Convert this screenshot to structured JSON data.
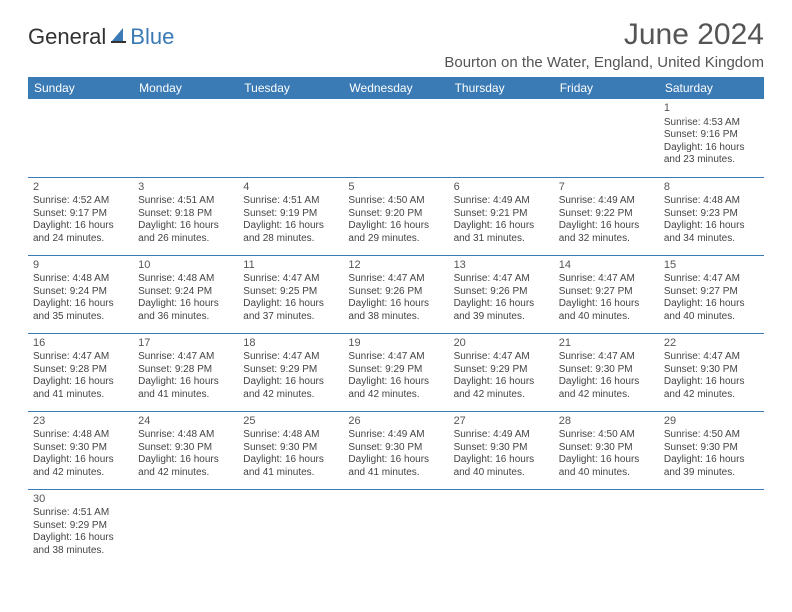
{
  "logo": {
    "text1": "General",
    "text2": "Blue"
  },
  "title": "June 2024",
  "location": "Bourton on the Water, England, United Kingdom",
  "colors": {
    "header_bg": "#3a7ab5",
    "header_text": "#ffffff",
    "cell_border": "#3a7ab5",
    "text": "#444444",
    "title_text": "#555555",
    "background": "#ffffff"
  },
  "days_of_week": [
    "Sunday",
    "Monday",
    "Tuesday",
    "Wednesday",
    "Thursday",
    "Friday",
    "Saturday"
  ],
  "weeks": [
    [
      null,
      null,
      null,
      null,
      null,
      null,
      {
        "n": "1",
        "sr": "Sunrise: 4:53 AM",
        "ss": "Sunset: 9:16 PM",
        "d1": "Daylight: 16 hours",
        "d2": "and 23 minutes."
      }
    ],
    [
      {
        "n": "2",
        "sr": "Sunrise: 4:52 AM",
        "ss": "Sunset: 9:17 PM",
        "d1": "Daylight: 16 hours",
        "d2": "and 24 minutes."
      },
      {
        "n": "3",
        "sr": "Sunrise: 4:51 AM",
        "ss": "Sunset: 9:18 PM",
        "d1": "Daylight: 16 hours",
        "d2": "and 26 minutes."
      },
      {
        "n": "4",
        "sr": "Sunrise: 4:51 AM",
        "ss": "Sunset: 9:19 PM",
        "d1": "Daylight: 16 hours",
        "d2": "and 28 minutes."
      },
      {
        "n": "5",
        "sr": "Sunrise: 4:50 AM",
        "ss": "Sunset: 9:20 PM",
        "d1": "Daylight: 16 hours",
        "d2": "and 29 minutes."
      },
      {
        "n": "6",
        "sr": "Sunrise: 4:49 AM",
        "ss": "Sunset: 9:21 PM",
        "d1": "Daylight: 16 hours",
        "d2": "and 31 minutes."
      },
      {
        "n": "7",
        "sr": "Sunrise: 4:49 AM",
        "ss": "Sunset: 9:22 PM",
        "d1": "Daylight: 16 hours",
        "d2": "and 32 minutes."
      },
      {
        "n": "8",
        "sr": "Sunrise: 4:48 AM",
        "ss": "Sunset: 9:23 PM",
        "d1": "Daylight: 16 hours",
        "d2": "and 34 minutes."
      }
    ],
    [
      {
        "n": "9",
        "sr": "Sunrise: 4:48 AM",
        "ss": "Sunset: 9:24 PM",
        "d1": "Daylight: 16 hours",
        "d2": "and 35 minutes."
      },
      {
        "n": "10",
        "sr": "Sunrise: 4:48 AM",
        "ss": "Sunset: 9:24 PM",
        "d1": "Daylight: 16 hours",
        "d2": "and 36 minutes."
      },
      {
        "n": "11",
        "sr": "Sunrise: 4:47 AM",
        "ss": "Sunset: 9:25 PM",
        "d1": "Daylight: 16 hours",
        "d2": "and 37 minutes."
      },
      {
        "n": "12",
        "sr": "Sunrise: 4:47 AM",
        "ss": "Sunset: 9:26 PM",
        "d1": "Daylight: 16 hours",
        "d2": "and 38 minutes."
      },
      {
        "n": "13",
        "sr": "Sunrise: 4:47 AM",
        "ss": "Sunset: 9:26 PM",
        "d1": "Daylight: 16 hours",
        "d2": "and 39 minutes."
      },
      {
        "n": "14",
        "sr": "Sunrise: 4:47 AM",
        "ss": "Sunset: 9:27 PM",
        "d1": "Daylight: 16 hours",
        "d2": "and 40 minutes."
      },
      {
        "n": "15",
        "sr": "Sunrise: 4:47 AM",
        "ss": "Sunset: 9:27 PM",
        "d1": "Daylight: 16 hours",
        "d2": "and 40 minutes."
      }
    ],
    [
      {
        "n": "16",
        "sr": "Sunrise: 4:47 AM",
        "ss": "Sunset: 9:28 PM",
        "d1": "Daylight: 16 hours",
        "d2": "and 41 minutes."
      },
      {
        "n": "17",
        "sr": "Sunrise: 4:47 AM",
        "ss": "Sunset: 9:28 PM",
        "d1": "Daylight: 16 hours",
        "d2": "and 41 minutes."
      },
      {
        "n": "18",
        "sr": "Sunrise: 4:47 AM",
        "ss": "Sunset: 9:29 PM",
        "d1": "Daylight: 16 hours",
        "d2": "and 42 minutes."
      },
      {
        "n": "19",
        "sr": "Sunrise: 4:47 AM",
        "ss": "Sunset: 9:29 PM",
        "d1": "Daylight: 16 hours",
        "d2": "and 42 minutes."
      },
      {
        "n": "20",
        "sr": "Sunrise: 4:47 AM",
        "ss": "Sunset: 9:29 PM",
        "d1": "Daylight: 16 hours",
        "d2": "and 42 minutes."
      },
      {
        "n": "21",
        "sr": "Sunrise: 4:47 AM",
        "ss": "Sunset: 9:30 PM",
        "d1": "Daylight: 16 hours",
        "d2": "and 42 minutes."
      },
      {
        "n": "22",
        "sr": "Sunrise: 4:47 AM",
        "ss": "Sunset: 9:30 PM",
        "d1": "Daylight: 16 hours",
        "d2": "and 42 minutes."
      }
    ],
    [
      {
        "n": "23",
        "sr": "Sunrise: 4:48 AM",
        "ss": "Sunset: 9:30 PM",
        "d1": "Daylight: 16 hours",
        "d2": "and 42 minutes."
      },
      {
        "n": "24",
        "sr": "Sunrise: 4:48 AM",
        "ss": "Sunset: 9:30 PM",
        "d1": "Daylight: 16 hours",
        "d2": "and 42 minutes."
      },
      {
        "n": "25",
        "sr": "Sunrise: 4:48 AM",
        "ss": "Sunset: 9:30 PM",
        "d1": "Daylight: 16 hours",
        "d2": "and 41 minutes."
      },
      {
        "n": "26",
        "sr": "Sunrise: 4:49 AM",
        "ss": "Sunset: 9:30 PM",
        "d1": "Daylight: 16 hours",
        "d2": "and 41 minutes."
      },
      {
        "n": "27",
        "sr": "Sunrise: 4:49 AM",
        "ss": "Sunset: 9:30 PM",
        "d1": "Daylight: 16 hours",
        "d2": "and 40 minutes."
      },
      {
        "n": "28",
        "sr": "Sunrise: 4:50 AM",
        "ss": "Sunset: 9:30 PM",
        "d1": "Daylight: 16 hours",
        "d2": "and 40 minutes."
      },
      {
        "n": "29",
        "sr": "Sunrise: 4:50 AM",
        "ss": "Sunset: 9:30 PM",
        "d1": "Daylight: 16 hours",
        "d2": "and 39 minutes."
      }
    ],
    [
      {
        "n": "30",
        "sr": "Sunrise: 4:51 AM",
        "ss": "Sunset: 9:29 PM",
        "d1": "Daylight: 16 hours",
        "d2": "and 38 minutes."
      },
      null,
      null,
      null,
      null,
      null,
      null
    ]
  ]
}
